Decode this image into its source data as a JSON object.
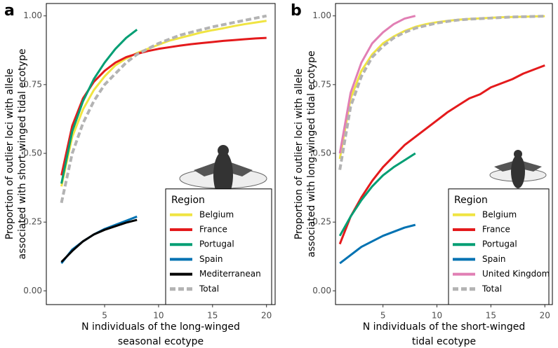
{
  "chart_data": [
    {
      "type": "line",
      "panel_label": "a",
      "xlabel": [
        "N individuals of the long-winged",
        "seasonal ecotype"
      ],
      "ylabel": [
        "Proportion of outlier loci with allele",
        "associated with short-winged tidal ecotype"
      ],
      "xlim": [
        -0.4,
        20.8
      ],
      "ylim": [
        -0.05,
        1.045
      ],
      "xticks": [
        5,
        10,
        15,
        20
      ],
      "yticks": [
        {
          "value": 0,
          "label": "0.00"
        },
        {
          "value": 0.25,
          "label": "0.25"
        },
        {
          "value": 0.5,
          "label": "0.50"
        },
        {
          "value": 0.75,
          "label": "0.75"
        },
        {
          "value": 1,
          "label": "1.00"
        }
      ],
      "legend": "lower right",
      "legend_title": "Region",
      "series": [
        {
          "name": "Belgium",
          "color": "#f0e442",
          "x": [
            1,
            2,
            3,
            4,
            5,
            6,
            7,
            8,
            9,
            10,
            11,
            12,
            13,
            14,
            15,
            16,
            17,
            18,
            19,
            20
          ],
          "values": [
            0.38,
            0.56,
            0.66,
            0.73,
            0.78,
            0.82,
            0.845,
            0.865,
            0.88,
            0.895,
            0.91,
            0.92,
            0.93,
            0.94,
            0.948,
            0.955,
            0.963,
            0.97,
            0.976,
            0.982
          ]
        },
        {
          "name": "France",
          "color": "#e41a1c",
          "x": [
            1,
            2,
            3,
            4,
            5,
            6,
            7,
            8,
            9,
            10,
            11,
            12,
            13,
            14,
            15,
            16,
            17,
            18,
            19,
            20
          ],
          "values": [
            0.42,
            0.6,
            0.7,
            0.76,
            0.8,
            0.83,
            0.85,
            0.862,
            0.872,
            0.88,
            0.886,
            0.892,
            0.897,
            0.901,
            0.905,
            0.909,
            0.912,
            0.915,
            0.918,
            0.92
          ]
        },
        {
          "name": "Portugal",
          "color": "#009e73",
          "x": [
            1,
            2,
            3,
            4,
            5,
            6,
            7,
            8
          ],
          "values": [
            0.39,
            0.58,
            0.69,
            0.77,
            0.83,
            0.88,
            0.92,
            0.95
          ]
        },
        {
          "name": "Spain",
          "color": "#0072b2",
          "x": [
            1,
            2,
            3,
            4,
            5,
            6,
            7,
            8
          ],
          "values": [
            0.1,
            0.15,
            0.18,
            0.205,
            0.225,
            0.24,
            0.255,
            0.27
          ]
        },
        {
          "name": "Mediterranean",
          "color": "#000000",
          "x": [
            1,
            2,
            3,
            4,
            5,
            6,
            7,
            8
          ],
          "values": [
            0.105,
            0.145,
            0.18,
            0.205,
            0.222,
            0.235,
            0.248,
            0.258
          ]
        },
        {
          "name": "Total",
          "color": "#b3b3b3",
          "style": "dashed",
          "x": [
            1,
            2,
            3,
            4,
            5,
            6,
            7,
            8,
            9,
            10,
            11,
            12,
            13,
            14,
            15,
            16,
            17,
            18,
            19,
            20
          ],
          "values": [
            0.32,
            0.5,
            0.61,
            0.69,
            0.75,
            0.79,
            0.83,
            0.86,
            0.88,
            0.9,
            0.915,
            0.93,
            0.94,
            0.95,
            0.96,
            0.968,
            0.976,
            0.984,
            0.992,
            1.0
          ]
        }
      ]
    },
    {
      "type": "line",
      "panel_label": "b",
      "xlabel": [
        "N individuals of the short-winged",
        "tidal ecotype"
      ],
      "ylabel": [
        "Proportion of outlier loci with allele",
        "associated with long-winged tidal ecotype"
      ],
      "xlim": [
        0.6,
        20.7
      ],
      "ylim": [
        -0.05,
        1.045
      ],
      "xticks": [
        5,
        10,
        15,
        20
      ],
      "yticks": [
        {
          "value": 0,
          "label": "0.00"
        },
        {
          "value": 0.25,
          "label": "0.25"
        },
        {
          "value": 0.5,
          "label": "0.50"
        },
        {
          "value": 0.75,
          "label": "0.75"
        },
        {
          "value": 1,
          "label": "1.00"
        }
      ],
      "legend": "lower right",
      "legend_title": "Region",
      "series": [
        {
          "name": "Belgium",
          "color": "#f0e442",
          "x": [
            1,
            2,
            3,
            4,
            5,
            6,
            7,
            8,
            9,
            10,
            11,
            12,
            13,
            14,
            15,
            16,
            17,
            18,
            19,
            20
          ],
          "values": [
            0.48,
            0.7,
            0.8,
            0.86,
            0.9,
            0.925,
            0.945,
            0.96,
            0.97,
            0.977,
            0.982,
            0.986,
            0.989,
            0.991,
            0.993,
            0.995,
            0.996,
            0.997,
            0.998,
            0.999
          ]
        },
        {
          "name": "France",
          "color": "#e41a1c",
          "x": [
            1,
            2,
            3,
            4,
            5,
            6,
            7,
            8,
            9,
            10,
            11,
            12,
            13,
            14,
            15,
            16,
            17,
            18,
            19,
            20
          ],
          "values": [
            0.17,
            0.27,
            0.34,
            0.4,
            0.45,
            0.49,
            0.53,
            0.56,
            0.59,
            0.62,
            0.65,
            0.675,
            0.7,
            0.715,
            0.74,
            0.755,
            0.77,
            0.79,
            0.805,
            0.82
          ]
        },
        {
          "name": "Portugal",
          "color": "#009e73",
          "x": [
            1,
            2,
            3,
            4,
            5,
            6,
            7,
            8
          ],
          "values": [
            0.2,
            0.27,
            0.33,
            0.38,
            0.42,
            0.45,
            0.475,
            0.5
          ]
        },
        {
          "name": "Spain",
          "color": "#0072b2",
          "x": [
            1,
            2,
            3,
            4,
            5,
            6,
            7,
            8
          ],
          "values": [
            0.1,
            0.13,
            0.16,
            0.18,
            0.2,
            0.215,
            0.23,
            0.24
          ]
        },
        {
          "name": "United Kingdom",
          "color": "#e17fb4",
          "x": [
            1,
            2,
            3,
            4,
            5,
            6,
            7,
            8
          ],
          "values": [
            0.5,
            0.72,
            0.83,
            0.9,
            0.94,
            0.97,
            0.99,
            1.0
          ]
        },
        {
          "name": "Total",
          "color": "#b3b3b3",
          "style": "dashed",
          "x": [
            1,
            2,
            3,
            4,
            5,
            6,
            7,
            8,
            9,
            10,
            11,
            12,
            13,
            14,
            15,
            16,
            17,
            18,
            19,
            20
          ],
          "values": [
            0.44,
            0.67,
            0.78,
            0.85,
            0.89,
            0.92,
            0.94,
            0.955,
            0.965,
            0.974,
            0.98,
            0.985,
            0.988,
            0.99,
            0.992,
            0.994,
            0.996,
            0.997,
            0.998,
            0.999
          ]
        }
      ]
    }
  ]
}
